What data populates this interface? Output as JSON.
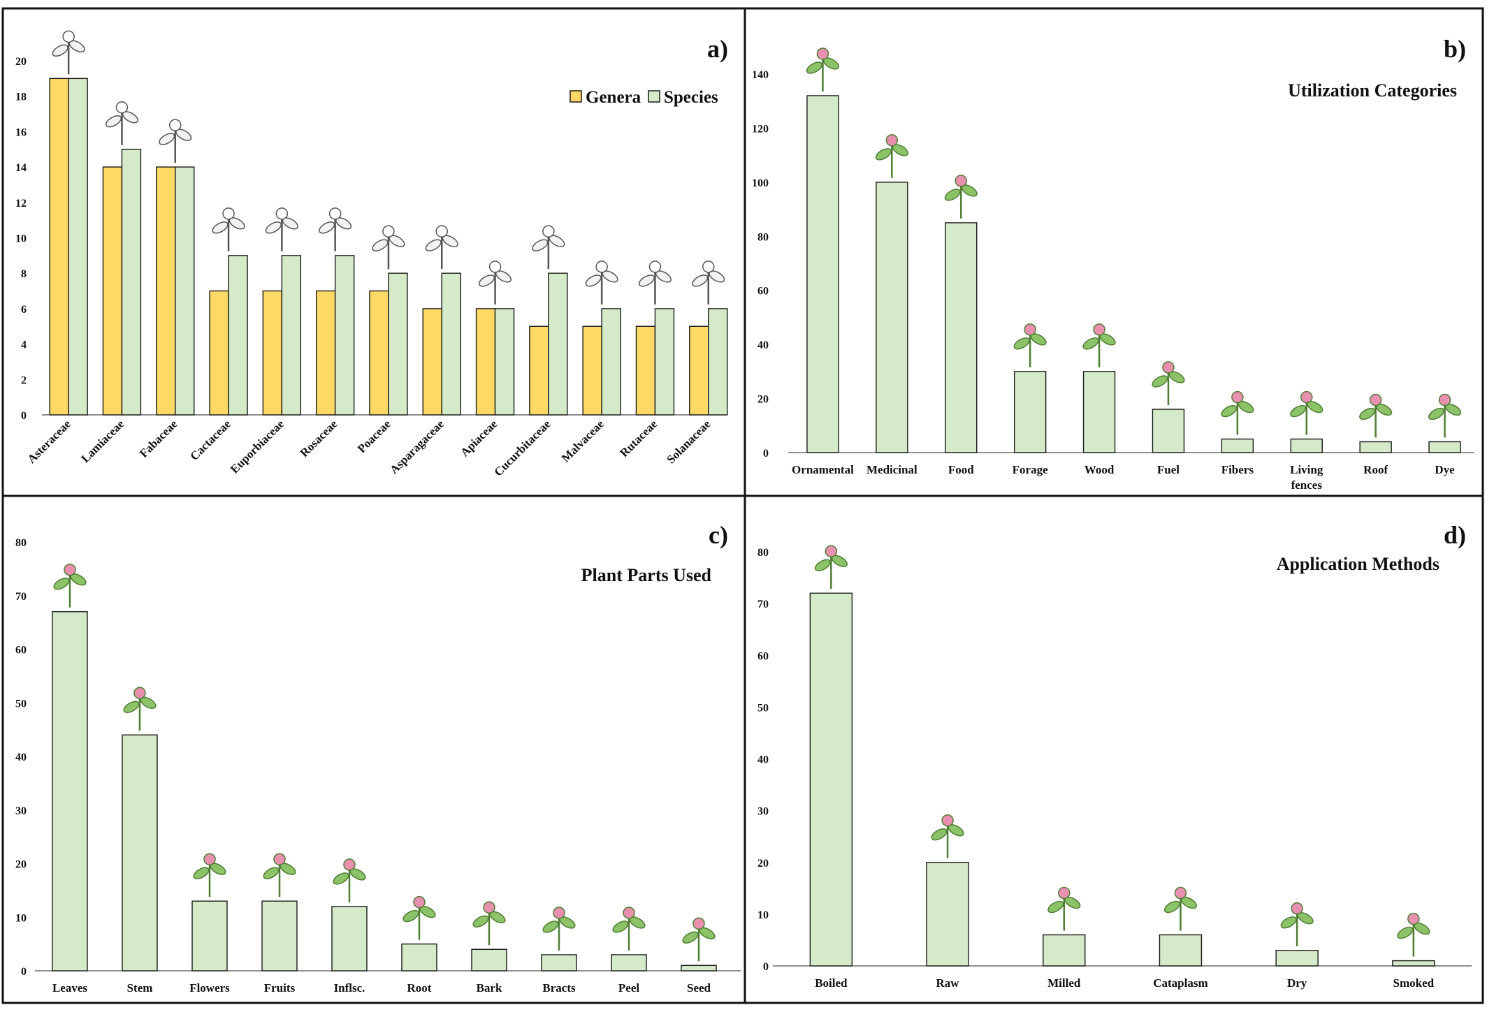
{
  "colors": {
    "genera": "#FFD966",
    "species": "#D5EAC8",
    "bar_stroke": "#1a1a1a",
    "frame": "#111111"
  },
  "chart_data": [
    {
      "type": "bar",
      "panel_label": "a)",
      "title": "",
      "categories": [
        "Asteraceae",
        "Lamiaceae",
        "Fabaceae",
        "Cactaceae",
        "Euporbiaceae",
        "Rosaceae",
        "Poaceae",
        "Asparagaceae",
        "Apiaceae",
        "Cucurbitaceae",
        "Malvaceae",
        "Rutaceae",
        "Solanaceae"
      ],
      "series": [
        {
          "name": "Genera",
          "values": [
            19,
            14,
            14,
            7,
            7,
            7,
            7,
            6,
            6,
            5,
            5,
            5,
            5
          ]
        },
        {
          "name": "Species",
          "values": [
            19,
            15,
            14,
            9,
            9,
            9,
            8,
            8,
            6,
            8,
            6,
            6,
            6
          ]
        }
      ],
      "yticks": [
        "0",
        "2",
        "4",
        "6",
        "8",
        "10",
        "12",
        "14",
        "16",
        "18",
        "20"
      ],
      "ylim": [
        0,
        20
      ],
      "xlabel": "",
      "ylabel": "",
      "legend": "top-right",
      "images": [
        "Plant illustrations above each family's bars"
      ]
    },
    {
      "type": "bar",
      "panel_label": "b)",
      "title": "Utilization Categories",
      "categories": [
        "Ornamental",
        "Medicinal",
        "Food",
        "Forage",
        "Wood",
        "Fuel",
        "Fibers",
        "Living fences",
        "Roof",
        "Dye"
      ],
      "category_lines": [
        [
          "Ornamental"
        ],
        [
          "Medicinal"
        ],
        [
          "Food"
        ],
        [
          "Forage"
        ],
        [
          "Wood"
        ],
        [
          "Fuel"
        ],
        [
          "Fibers"
        ],
        [
          "Living",
          "fences"
        ],
        [
          "Roof"
        ],
        [
          "Dye"
        ]
      ],
      "values": [
        132,
        100,
        85,
        30,
        30,
        16,
        5,
        5,
        4,
        4
      ],
      "yticks": [
        "0",
        "20",
        "40",
        "60",
        "80",
        "100",
        "120",
        "140"
      ],
      "ylim": [
        0,
        140
      ],
      "xlabel": "",
      "ylabel": "",
      "images": [
        "Photos of plants above each bar"
      ]
    },
    {
      "type": "bar",
      "panel_label": "c)",
      "title": "Plant Parts Used",
      "categories": [
        "Leaves",
        "Stem",
        "Flowers",
        "Fruits",
        "Inflsc.",
        "Root",
        "Bark",
        "Bracts",
        "Peel",
        "Seed"
      ],
      "values": [
        67,
        44,
        13,
        13,
        12,
        5,
        4,
        3,
        3,
        1
      ],
      "yticks": [
        "0",
        "10",
        "20",
        "30",
        "40",
        "50",
        "60",
        "70",
        "80"
      ],
      "ylim": [
        0,
        80
      ],
      "xlabel": "",
      "ylabel": "",
      "images": [
        "Photos of plant parts above each bar"
      ]
    },
    {
      "type": "bar",
      "panel_label": "d)",
      "title": "Application Methods",
      "categories": [
        "Boiled",
        "Raw",
        "Milled",
        "Cataplasm",
        "Dry",
        "Smoked"
      ],
      "values": [
        72,
        20,
        6,
        6,
        3,
        1
      ],
      "yticks": [
        "0",
        "10",
        "20",
        "30",
        "40",
        "50",
        "60",
        "70",
        "80"
      ],
      "ylim": [
        0,
        80
      ],
      "xlabel": "",
      "ylabel": "",
      "images": [
        "Photos illustrating each application method above each bar"
      ]
    }
  ]
}
